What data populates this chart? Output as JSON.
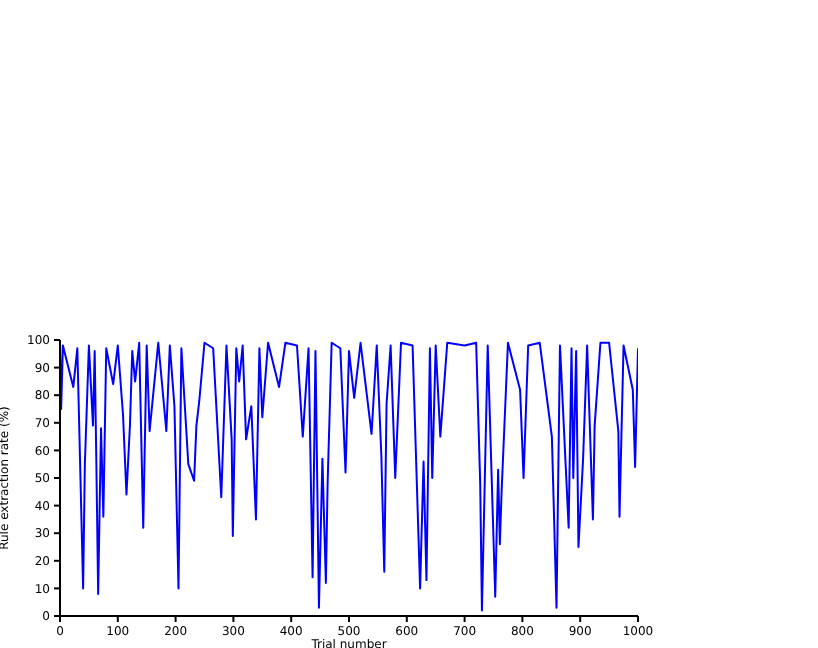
{
  "chart_data": {
    "type": "line",
    "xlabel": "Trial number",
    "ylabel": "Rule extraction rate (%)",
    "x": [
      0,
      2,
      5,
      23,
      30,
      40,
      43,
      50,
      57,
      60,
      63,
      66,
      71,
      75,
      80,
      92,
      100,
      109,
      115,
      121,
      125,
      130,
      137,
      144,
      150,
      155,
      170,
      184,
      190,
      198,
      205,
      210,
      222,
      232,
      236,
      241,
      250,
      265,
      279,
      288,
      297,
      299,
      305,
      310,
      316,
      322,
      331,
      339,
      345,
      350,
      360,
      379,
      390,
      410,
      420,
      430,
      437,
      442,
      448,
      454,
      460,
      463,
      470,
      485,
      494,
      500,
      509,
      520,
      539,
      548,
      556,
      561,
      565,
      572,
      580,
      590,
      610,
      623,
      629,
      634,
      640,
      644,
      650,
      658,
      670,
      700,
      720,
      727,
      730,
      740,
      753,
      758,
      761,
      764,
      775,
      796,
      802,
      810,
      830,
      851,
      859,
      865,
      880,
      885,
      888,
      893,
      897,
      905,
      912,
      922,
      925,
      935,
      950,
      966,
      968,
      975,
      991,
      995,
      1000
    ],
    "series": [
      {
        "color": "#0000ff",
        "values": [
          99,
          75,
          98,
          83,
          97,
          10,
          55,
          98,
          69,
          96,
          54,
          8,
          68,
          36,
          97,
          84,
          98,
          73,
          44,
          69,
          96,
          85,
          99,
          32,
          98,
          67,
          99,
          67,
          98,
          76,
          10,
          97,
          55,
          49,
          69,
          78,
          99,
          97,
          43,
          98,
          64,
          29,
          97,
          85,
          98,
          64,
          76,
          35,
          97,
          72,
          99,
          83,
          99,
          98,
          65,
          97,
          14,
          96,
          3,
          57,
          12,
          48,
          99,
          97,
          52,
          96,
          79,
          99,
          66,
          98,
          58,
          16,
          77,
          98,
          50,
          99,
          98,
          10,
          56,
          13,
          97,
          50,
          98,
          65,
          99,
          98,
          99,
          48,
          2,
          98,
          7,
          53,
          26,
          45,
          99,
          82,
          50,
          98,
          99,
          65,
          3,
          98,
          32,
          97,
          50,
          96,
          25,
          57,
          98,
          35,
          69,
          99,
          99,
          67,
          36,
          98,
          82,
          54,
          97
        ]
      }
    ],
    "xlim": [
      0,
      1000
    ],
    "xticks": [
      0,
      100,
      200,
      300,
      400,
      500,
      600,
      700,
      800,
      900,
      1000
    ],
    "ylim": [
      0,
      100
    ],
    "yticks": [
      0,
      10,
      20,
      30,
      40,
      50,
      60,
      70,
      80,
      90,
      100
    ],
    "grid": false,
    "legend": false,
    "marker": "none",
    "line_style": "solid"
  }
}
